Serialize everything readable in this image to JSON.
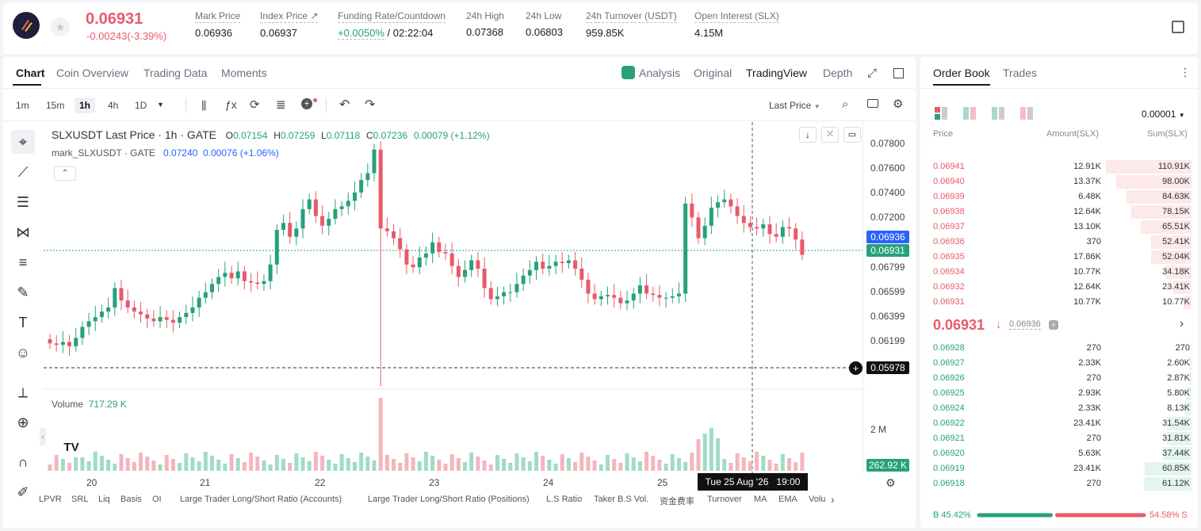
{
  "ticker": {
    "price": "0.06931",
    "change": "-0.00243(-3.39%)",
    "stats": [
      {
        "label": "Mark Price",
        "value": "0.06936"
      },
      {
        "label": "Index Price ↗",
        "value": "0.06937"
      },
      {
        "label": "Funding Rate/Countdown",
        "value": "+0.0050%",
        "value2": " / 02:22:04"
      },
      {
        "label": "24h High",
        "value": "0.07368"
      },
      {
        "label": "24h Low",
        "value": "0.06803"
      },
      {
        "label": "24h Turnover (USDT)",
        "value": "959.85K"
      },
      {
        "label": "Open Interest (SLX)",
        "value": "4.15M"
      }
    ]
  },
  "chart_tabs": [
    "Chart",
    "Coin Overview",
    "Trading Data",
    "Moments"
  ],
  "chart_views": [
    "Analysis",
    "Original",
    "TradingView",
    "Depth"
  ],
  "intervals": [
    "1m",
    "15m",
    "1h",
    "4h",
    "1D"
  ],
  "price_type": "Last Price",
  "legend": {
    "symbol": "SLXUSDT Last Price · 1h · GATE",
    "o": "O",
    "o_v": "0.07154",
    "h": "H",
    "h_v": "0.07259",
    "l": "L",
    "l_v": "0.07118",
    "c": "C",
    "c_v": "0.07236",
    "chg": "0.00079 (+1.12%)",
    "mark_name": "mark_SLXUSDT · GATE",
    "mark_v": "0.07240",
    "mark_chg": "0.00076 (+1.06%)"
  },
  "volume_legend": {
    "label": "Volume",
    "value": "717.29 K"
  },
  "y_axis_labels": [
    "0.07800",
    "0.07600",
    "0.07400",
    "0.07200",
    "0.06799",
    "0.06599",
    "0.06399",
    "0.06199"
  ],
  "price_badges": {
    "mark": "0.06936",
    "last": "0.06931",
    "crosshair": "0.05978",
    "volume": "262.92 K",
    "volume_axis": "2 M"
  },
  "x_axis_labels": [
    "20",
    "21",
    "22",
    "23",
    "24",
    "25"
  ],
  "crosshair_time": "Tue 25 Aug '26   19:00",
  "indicators": [
    "LPVR",
    "SRL",
    "Liq",
    "Basis",
    "OI",
    "Large Trader Long/Short Ratio (Accounts)",
    "Large Trader Long/Short Ratio (Positions)",
    "L.S Ratio",
    "Taker B.S Vol.",
    "资金费率",
    "Turnover",
    "MA",
    "EMA",
    "Volu"
  ],
  "chart_data": {
    "type": "candlestick",
    "x_labels": [
      "20",
      "21",
      "22",
      "23",
      "24",
      "25"
    ],
    "ylim": [
      0.0596,
      0.0782
    ],
    "closes": [
      0.0629,
      0.0628,
      0.063,
      0.0627,
      0.0633,
      0.0641,
      0.0645,
      0.0648,
      0.0652,
      0.0655,
      0.0669,
      0.066,
      0.0655,
      0.0652,
      0.065,
      0.0647,
      0.0645,
      0.0648,
      0.0646,
      0.0644,
      0.0648,
      0.0651,
      0.0655,
      0.0662,
      0.0666,
      0.0672,
      0.0677,
      0.068,
      0.0676,
      0.0681,
      0.0674,
      0.0673,
      0.0672,
      0.0674,
      0.0686,
      0.0711,
      0.0716,
      0.0706,
      0.0712,
      0.0726,
      0.0733,
      0.0721,
      0.0714,
      0.0719,
      0.0726,
      0.0728,
      0.0732,
      0.0738,
      0.0747,
      0.0752,
      0.0769,
      0.0712,
      0.071,
      0.0705,
      0.0697,
      0.0686,
      0.0684,
      0.0691,
      0.0694,
      0.0702,
      0.0695,
      0.0694,
      0.0685,
      0.0677,
      0.0682,
      0.0689,
      0.0683,
      0.0669,
      0.0661,
      0.0663,
      0.0666,
      0.0666,
      0.0672,
      0.0678,
      0.0682,
      0.0688,
      0.0683,
      0.0685,
      0.0688,
      0.0687,
      0.0689,
      0.0683,
      0.0675,
      0.0665,
      0.0661,
      0.0663,
      0.0664,
      0.0662,
      0.0658,
      0.066,
      0.0665,
      0.0671,
      0.0665,
      0.0664,
      0.0662,
      0.0662,
      0.0663,
      0.0665,
      0.073,
      0.072,
      0.0705,
      0.0714,
      0.0727,
      0.0731,
      0.0733,
      0.0728,
      0.0721,
      0.0716,
      0.0713,
      0.0712,
      0.0715,
      0.0708,
      0.0706,
      0.0713,
      0.0712,
      0.0704,
      0.0693
    ],
    "volume_axis": "2 M",
    "volume_scale_max": 2000000
  },
  "orderbook": {
    "tabs": [
      "Order Book",
      "Trades"
    ],
    "precision": "0.00001",
    "headers": [
      "Price",
      "Amount(SLX)",
      "Sum(SLX)"
    ],
    "asks": [
      [
        "0.06941",
        "12.91K",
        "110.91K",
        110.91
      ],
      [
        "0.06940",
        "13.37K",
        "98.00K",
        98.0
      ],
      [
        "0.06939",
        "6.48K",
        "84.63K",
        84.63
      ],
      [
        "0.06938",
        "12.64K",
        "78.15K",
        78.15
      ],
      [
        "0.06937",
        "13.10K",
        "65.51K",
        65.51
      ],
      [
        "0.06936",
        "370",
        "52.41K",
        52.41
      ],
      [
        "0.06935",
        "17.86K",
        "52.04K",
        52.04
      ],
      [
        "0.06934",
        "10.77K",
        "34.18K",
        34.18
      ],
      [
        "0.06932",
        "12.64K",
        "23.41K",
        23.41
      ],
      [
        "0.06931",
        "10.77K",
        "10.77K",
        10.77
      ]
    ],
    "mid_price": "0.06931",
    "mid_arrow": "↓",
    "mid_mark": "0.06936",
    "bids": [
      [
        "0.06928",
        "270",
        "270",
        0.27
      ],
      [
        "0.06927",
        "2.33K",
        "2.60K",
        2.6
      ],
      [
        "0.06926",
        "270",
        "2.87K",
        2.87
      ],
      [
        "0.06925",
        "2.93K",
        "5.80K",
        5.8
      ],
      [
        "0.06924",
        "2.33K",
        "8.13K",
        8.13
      ],
      [
        "0.06922",
        "23.41K",
        "31.54K",
        31.54
      ],
      [
        "0.06921",
        "270",
        "31.81K",
        31.81
      ],
      [
        "0.06920",
        "5.63K",
        "37.44K",
        37.44
      ],
      [
        "0.06919",
        "23.41K",
        "60.85K",
        60.85
      ],
      [
        "0.06918",
        "270",
        "61.12K",
        61.12
      ]
    ],
    "buy_pct": "45.42%",
    "sell_pct": "54.58%",
    "buy_label": "B",
    "sell_label": "S",
    "buy_fraction": 0.4542
  },
  "colors": {
    "up": "#26a17b",
    "down": "#e85a6a",
    "accent": "#1a1a1a"
  }
}
